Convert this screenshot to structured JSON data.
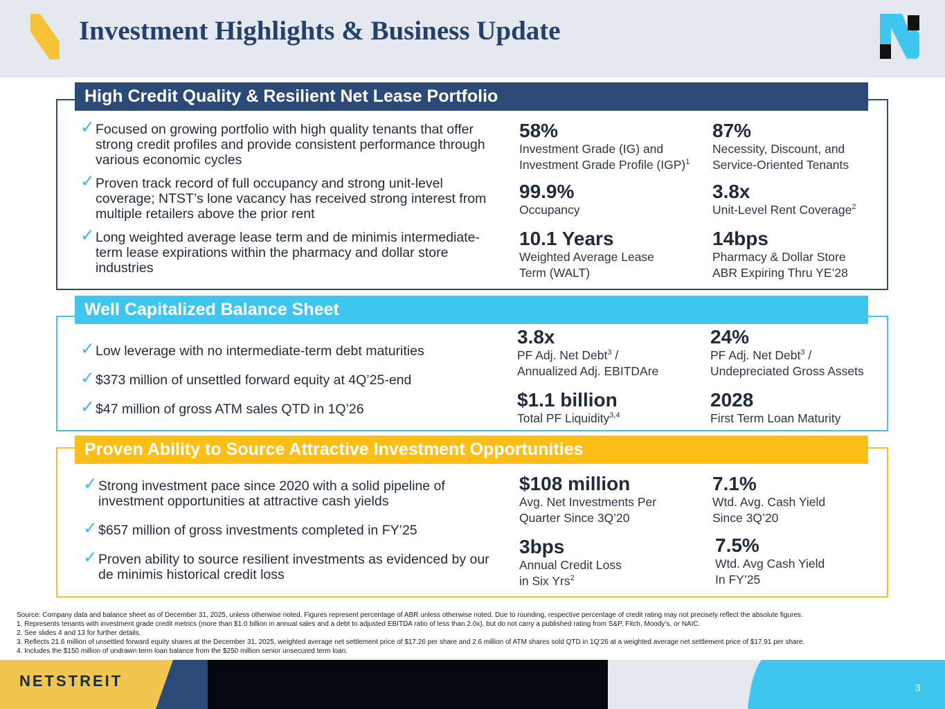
{
  "header": {
    "title": "Investment Highlights & Business Update"
  },
  "colors": {
    "navy": "#2b4a78",
    "cyan": "#3fc6ee",
    "gold": "#fdbf16",
    "check": "#3fb9e4"
  },
  "icons": {
    "check": "✓"
  },
  "sections": [
    {
      "title": "High Credit Quality & Resilient Net Lease Portfolio",
      "bullets": [
        "Focused on growing portfolio with high quality tenants that offer strong credit profiles and provide consistent performance through various economic cycles",
        "Proven track record of full occupancy and strong unit-level coverage; NTST’s lone vacancy has received strong interest from multiple retailers above the prior rent",
        "Long weighted average lease term and de minimis intermediate-term lease expirations within the pharmacy and dollar store industries"
      ],
      "stats": [
        {
          "value": "58%",
          "label1": "Investment Grade (IG) and",
          "label2": "Investment Grade Profile (IGP)",
          "sup": "1"
        },
        {
          "value": "87%",
          "label1": "Necessity, Discount, and",
          "label2": "Service-Oriented Tenants"
        },
        {
          "value": "99.9%",
          "label1": "Occupancy"
        },
        {
          "value": "3.8x",
          "label1": "Unit-Level Rent Coverage",
          "sup": "2"
        },
        {
          "value": "10.1 Years",
          "label1": "Weighted Average Lease",
          "label2": "Term (WALT)"
        },
        {
          "value": "14bps",
          "label1": "Pharmacy & Dollar Store",
          "label2": "ABR Expiring Thru YE’28"
        }
      ]
    },
    {
      "title": "Well Capitalized Balance Sheet",
      "bullets": [
        "Low leverage with no intermediate-term debt maturities",
        "$373 million of unsettled forward equity at 4Q’25-end",
        "$47 million of gross ATM sales QTD in 1Q’26"
      ],
      "stats": [
        {
          "value": "3.8x",
          "label1a": "PF Adj. Net Debt",
          "sup": "3",
          "label1b": " /",
          "label2": "Annualized Adj. EBITDAre"
        },
        {
          "value": "24%",
          "label1a": "PF Adj. Net Debt",
          "sup": "3",
          "label1b": " /",
          "label2": "Undepreciated Gross Assets"
        },
        {
          "value": "$1.1 billion",
          "label1": "Total PF Liquidity",
          "sup": "3,4"
        },
        {
          "value": "2028",
          "label1": "First Term Loan Maturity"
        }
      ]
    },
    {
      "title": "Proven Ability to Source Attractive Investment Opportunities",
      "bullets": [
        "Strong investment pace since 2020 with a solid pipeline of investment opportunities at attractive cash yields",
        "$657 million of gross investments completed in FY’25",
        "Proven ability to source resilient investments as evidenced by our de minimis historical credit loss"
      ],
      "stats": [
        {
          "value": "$108 million",
          "label1": "Avg. Net Investments Per",
          "label2": "Quarter Since 3Q’20"
        },
        {
          "value": "7.1%",
          "label1": "Wtd. Avg. Cash Yield",
          "label2": "Since 3Q’20"
        },
        {
          "value": "3bps",
          "label1": "Annual Credit Loss",
          "label2": "in Six Yrs",
          "sup": "2"
        },
        {
          "value": "7.5%",
          "label1": "Wtd. Avg Cash Yield",
          "label2": "In FY’25"
        }
      ]
    }
  ],
  "footnotes": [
    "Source: Company data and balance sheet as of December 31, 2025, unless otherwise noted. Figures represent percentage of ABR unless otherwise noted. Due to rounding, respective percentage of credit rating may not precisely reflect the absolute figures.",
    "1.   Represents tenants with investment grade credit metrics (more than $1.0 billion in annual sales and a debt to adjusted EBITDA ratio of less than 2.0x), but do not carry a published rating from S&P, Fitch, Moody’s, or NAIC.",
    "2.   See slides 4 and 13 for further details.",
    "3.   Reflects 21.6 million of unsettled forward equity shares at the December 31, 2025, weighted average net settlement price of $17.26 per share and 2.6 million of ATM shares sold QTD in 1Q’26 at a weighted average net settlement price of $17.91 per share.",
    "4.   Includes the $150 million of undrawn term loan balance from the $250 million senior unsecured term loan."
  ],
  "footer": {
    "brand": "NETSTREIT",
    "page_number": "3"
  }
}
